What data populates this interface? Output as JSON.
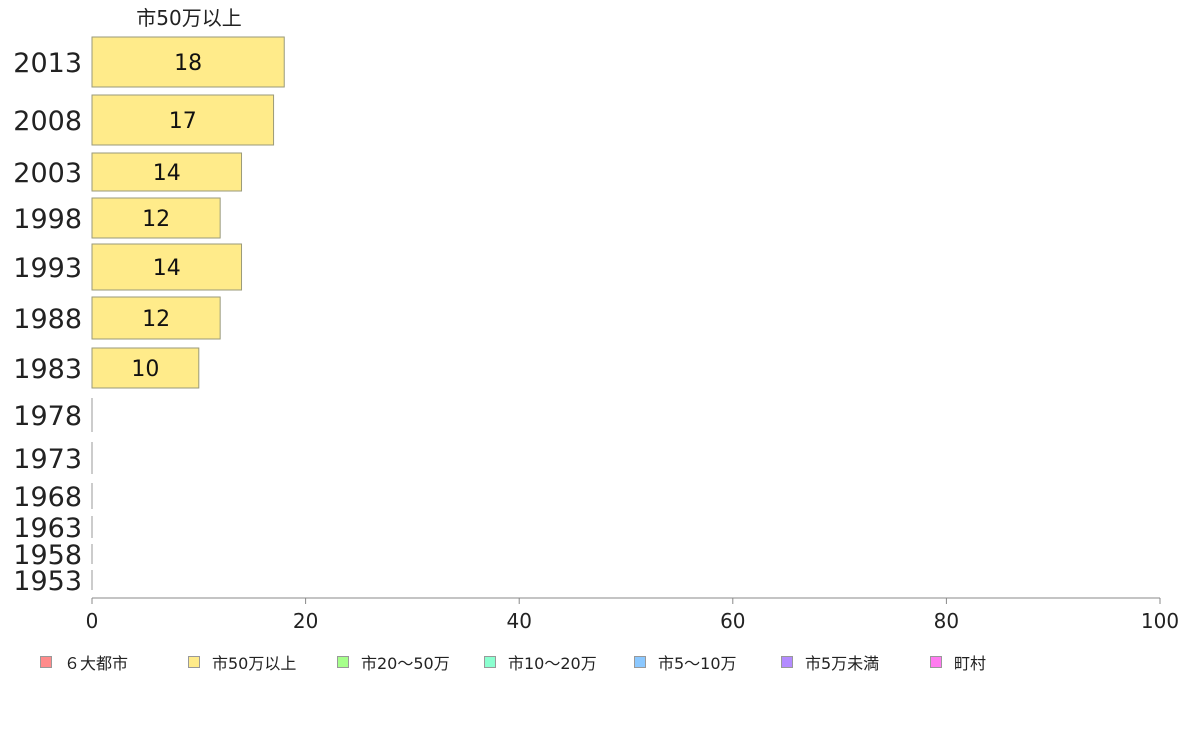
{
  "chart_data": {
    "type": "bar",
    "orientation": "horizontal",
    "panel_title": "市50万以上",
    "categories": [
      "2013",
      "2008",
      "2003",
      "1998",
      "1993",
      "1988",
      "1983",
      "1978",
      "1973",
      "1968",
      "1963",
      "1958",
      "1953"
    ],
    "series": [
      {
        "name": "市50万以上",
        "color": "#ffeb8a",
        "values": [
          18,
          17,
          14,
          12,
          14,
          12,
          10,
          0,
          0,
          0,
          0,
          0,
          0
        ]
      }
    ],
    "data_labels": [
      "18",
      "17",
      "14",
      "12",
      "14",
      "12",
      "10",
      "",
      "",
      "",
      "",
      "",
      ""
    ],
    "xlim": [
      0,
      100
    ],
    "xticks": [
      "0",
      "20",
      "40",
      "60",
      "80",
      "100"
    ],
    "grid": false,
    "legend_position": "bottom",
    "legend": [
      {
        "label": "６大都市",
        "color": "#ff8b8b"
      },
      {
        "label": "市50万以上",
        "color": "#ffeb8a"
      },
      {
        "label": "市20〜50万",
        "color": "#a6ff8b"
      },
      {
        "label": "市10〜20万",
        "color": "#8bffd0"
      },
      {
        "label": "市5〜10万",
        "color": "#8bc8ff"
      },
      {
        "label": "市5万未満",
        "color": "#b38bff"
      },
      {
        "label": "町村",
        "color": "#ff7bf0"
      }
    ]
  }
}
